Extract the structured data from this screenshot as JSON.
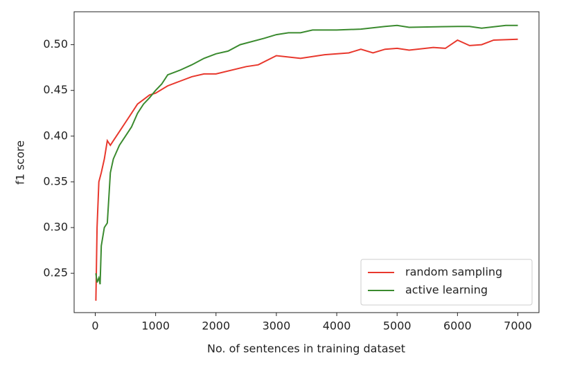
{
  "chart_data": {
    "type": "line",
    "xlabel": "No. of sentences in training dataset",
    "ylabel": "f1 score",
    "xlim": [
      -350,
      7350
    ],
    "xticks": [
      0,
      1000,
      2000,
      3000,
      4000,
      5000,
      6000,
      7000
    ],
    "ylim": [
      0.207,
      0.536
    ],
    "yticks": [
      0.25,
      {
        "value": 0.3,
        "label": "0.30"
      },
      0.35,
      {
        "value": 0.4,
        "label": "0.40"
      },
      0.45,
      {
        "value": 0.5,
        "label": "0.50"
      }
    ],
    "legend": "lower right",
    "series": [
      {
        "name": "random sampling",
        "color": "#e8372c",
        "x": [
          10,
          30,
          60,
          100,
          150,
          200,
          250,
          300,
          400,
          500,
          600,
          700,
          800,
          900,
          1000,
          1200,
          1400,
          1600,
          1800,
          2000,
          2500,
          2700,
          3000,
          3400,
          3800,
          4200,
          4400,
          4600,
          4800,
          5000,
          5200,
          5600,
          5800,
          6000,
          6200,
          6400,
          6600,
          7000
        ],
        "values": [
          0.22,
          0.3,
          0.35,
          0.36,
          0.375,
          0.395,
          0.39,
          0.395,
          0.405,
          0.415,
          0.425,
          0.435,
          0.44,
          0.445,
          0.447,
          0.455,
          0.46,
          0.465,
          0.468,
          0.468,
          0.476,
          0.478,
          0.488,
          0.485,
          0.489,
          0.491,
          0.495,
          0.491,
          0.495,
          0.496,
          0.494,
          0.497,
          0.496,
          0.505,
          0.499,
          0.5,
          0.505,
          0.506
        ]
      },
      {
        "name": "active learning",
        "color": "#3a8a2e",
        "x": [
          10,
          30,
          60,
          80,
          100,
          150,
          200,
          250,
          300,
          400,
          500,
          600,
          700,
          800,
          900,
          1000,
          1100,
          1200,
          1400,
          1600,
          1800,
          2000,
          2200,
          2400,
          2800,
          3000,
          3200,
          3400,
          3600,
          4000,
          4400,
          4800,
          5000,
          5200,
          6000,
          6200,
          6400,
          6800,
          7000
        ],
        "values": [
          0.25,
          0.24,
          0.245,
          0.238,
          0.28,
          0.3,
          0.305,
          0.36,
          0.375,
          0.39,
          0.4,
          0.41,
          0.425,
          0.435,
          0.442,
          0.45,
          0.457,
          0.467,
          0.472,
          0.478,
          0.485,
          0.49,
          0.493,
          0.5,
          0.507,
          0.511,
          0.513,
          0.513,
          0.516,
          0.516,
          0.517,
          0.52,
          0.521,
          0.519,
          0.52,
          0.52,
          0.518,
          0.521,
          0.521
        ]
      }
    ]
  }
}
